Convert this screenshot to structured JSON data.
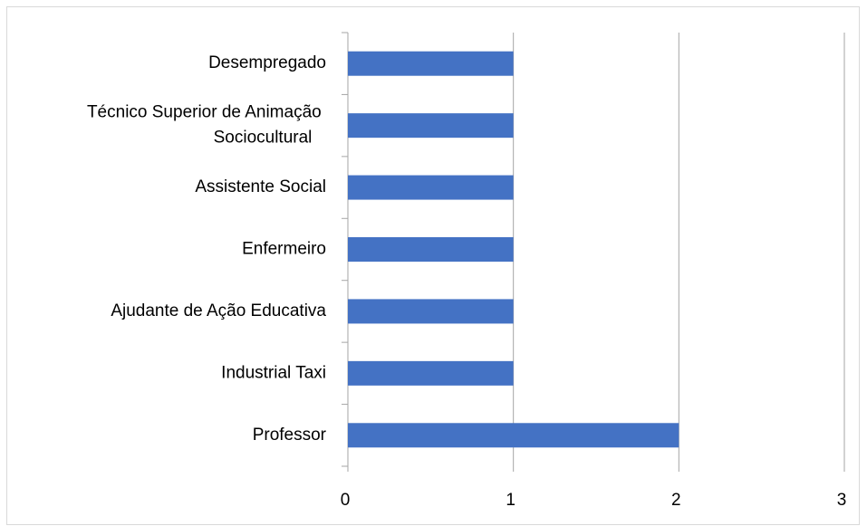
{
  "chart_data": {
    "type": "barh",
    "categories": [
      "Desempregado",
      "Técnico Superior de Animação Sociocultural",
      "Assistente Social",
      "Enfermeiro",
      "Ajudante de Ação Educativa",
      "Industrial Taxi",
      "Professor"
    ],
    "values": [
      1,
      1,
      1,
      1,
      1,
      1,
      2
    ],
    "color": "#4472c4",
    "xlim": [
      0,
      3
    ],
    "xticks": [
      0,
      1,
      2,
      3
    ],
    "grid": true
  }
}
